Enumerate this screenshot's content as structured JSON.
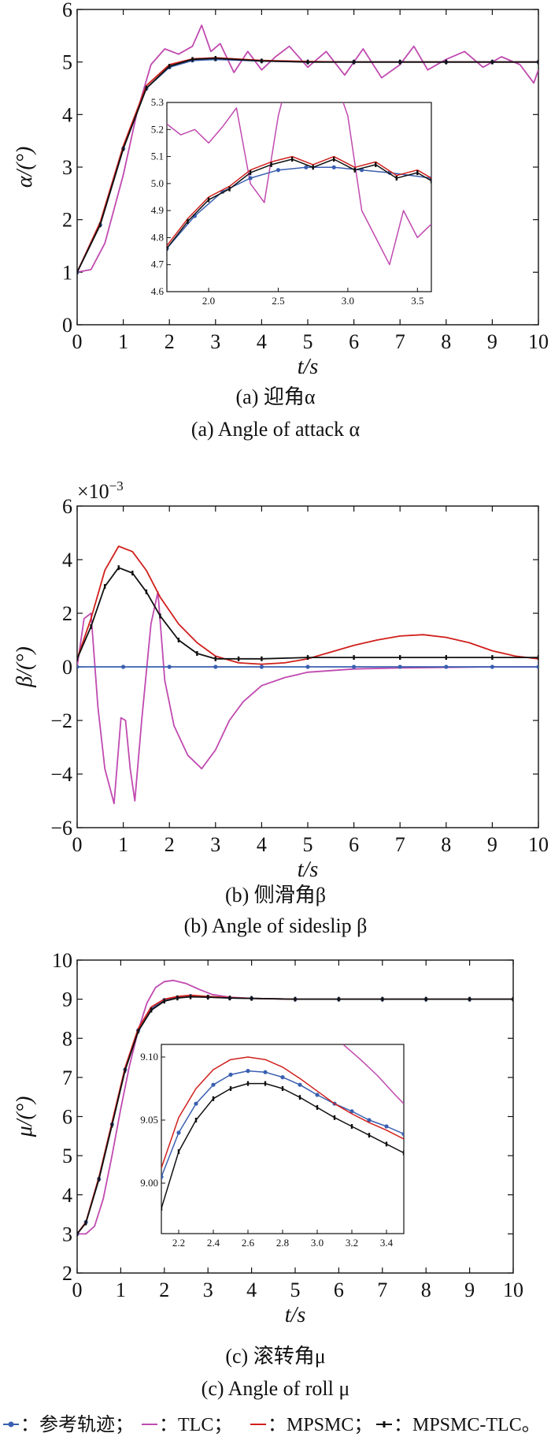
{
  "colors": {
    "reference": "#3a5fb0",
    "tlc": "#c04ab0",
    "mpsmc": "#d0201c",
    "mpsmc_tlc": "#111111"
  },
  "chart_data": [
    {
      "type": "line",
      "id": "alpha",
      "xlabel": "t/s",
      "ylabel": "α/(°)",
      "xlim": [
        0,
        10
      ],
      "ylim": [
        0,
        6
      ],
      "xticks": [
        "0",
        "1",
        "2",
        "3",
        "4",
        "5",
        "6",
        "7",
        "8",
        "9",
        "10"
      ],
      "yticks": [
        "0",
        "1",
        "2",
        "3",
        "4",
        "5",
        "6"
      ],
      "caption_cn": "(a) 迎角α",
      "caption_en": "(a) Angle of attack α",
      "series": [
        {
          "key": "reference",
          "x": [
            0,
            0.5,
            1,
            1.5,
            2,
            2.5,
            3,
            4,
            5,
            6,
            7,
            8,
            9,
            10
          ],
          "y": [
            1.0,
            1.9,
            3.35,
            4.5,
            4.9,
            5.03,
            5.05,
            5.02,
            5.0,
            5.0,
            5.0,
            5.0,
            5.0,
            5.0
          ]
        },
        {
          "key": "mpsmc",
          "x": [
            0,
            0.5,
            1,
            1.5,
            2,
            2.5,
            3,
            4,
            5,
            6,
            7,
            8,
            9,
            10
          ],
          "y": [
            1.0,
            1.95,
            3.4,
            4.55,
            4.95,
            5.06,
            5.08,
            5.03,
            5.01,
            5.0,
            5.0,
            5.0,
            5.0,
            5.0
          ]
        },
        {
          "key": "mpsmc_tlc",
          "x": [
            0,
            0.5,
            1,
            1.5,
            2,
            2.5,
            3,
            4,
            5,
            6,
            7,
            8,
            9,
            10
          ],
          "y": [
            1.0,
            1.9,
            3.35,
            4.5,
            4.92,
            5.05,
            5.07,
            5.02,
            5.0,
            5.0,
            5.0,
            5.0,
            5.0,
            5.0
          ]
        },
        {
          "key": "tlc",
          "x": [
            0,
            0.3,
            0.6,
            1.0,
            1.3,
            1.6,
            1.9,
            2.2,
            2.5,
            2.7,
            2.9,
            3.1,
            3.4,
            3.7,
            4.0,
            4.3,
            4.6,
            5.0,
            5.4,
            5.8,
            6.2,
            6.6,
            7.0,
            7.3,
            7.6,
            8.0,
            8.4,
            8.8,
            9.2,
            9.6,
            9.9,
            10.0
          ],
          "y": [
            1.0,
            1.05,
            1.55,
            2.85,
            4.05,
            4.95,
            5.25,
            5.15,
            5.3,
            5.7,
            5.2,
            5.35,
            4.8,
            5.2,
            4.85,
            5.1,
            5.3,
            4.9,
            5.2,
            4.75,
            5.25,
            4.7,
            4.95,
            5.3,
            4.85,
            5.05,
            5.2,
            4.9,
            5.1,
            4.95,
            4.6,
            4.85
          ]
        }
      ],
      "inset": {
        "xlim": [
          1.7,
          3.6
        ],
        "ylim": [
          4.6,
          5.3
        ],
        "xticks": [
          "2.0",
          "2.5",
          "3.0",
          "3.5"
        ],
        "yticks": [
          "4.6",
          "4.7",
          "4.8",
          "4.9",
          "5.0",
          "5.1",
          "5.2",
          "5.3"
        ],
        "series": [
          {
            "key": "reference",
            "x": [
              1.7,
              1.9,
              2.1,
              2.3,
              2.5,
              2.7,
              2.9,
              3.1,
              3.3,
              3.6
            ],
            "y": [
              4.76,
              4.88,
              4.97,
              5.02,
              5.05,
              5.06,
              5.06,
              5.05,
              5.04,
              5.02
            ]
          },
          {
            "key": "mpsmc",
            "x": [
              1.7,
              1.85,
              2.0,
              2.15,
              2.3,
              2.45,
              2.6,
              2.75,
              2.9,
              3.05,
              3.2,
              3.35,
              3.5,
              3.6
            ],
            "y": [
              4.77,
              4.87,
              4.95,
              4.99,
              5.05,
              5.08,
              5.1,
              5.07,
              5.1,
              5.06,
              5.08,
              5.03,
              5.05,
              5.02
            ]
          },
          {
            "key": "mpsmc_tlc",
            "x": [
              1.7,
              1.85,
              2.0,
              2.15,
              2.3,
              2.45,
              2.6,
              2.75,
              2.9,
              3.05,
              3.2,
              3.35,
              3.5,
              3.6
            ],
            "y": [
              4.76,
              4.86,
              4.94,
              4.98,
              5.04,
              5.07,
              5.09,
              5.06,
              5.09,
              5.05,
              5.07,
              5.02,
              5.04,
              5.01
            ]
          },
          {
            "key": "tlc",
            "x": [
              1.7,
              1.8,
              1.9,
              2.0,
              2.1,
              2.2,
              2.3,
              2.4,
              2.5,
              2.6,
              2.7,
              2.8,
              2.9,
              3.0,
              3.1,
              3.2,
              3.3,
              3.4,
              3.5,
              3.6
            ],
            "y": [
              5.22,
              5.18,
              5.2,
              5.15,
              5.21,
              5.28,
              5.0,
              4.93,
              5.25,
              5.45,
              5.45,
              5.35,
              5.4,
              5.25,
              4.9,
              4.8,
              4.7,
              4.9,
              4.8,
              4.85
            ]
          }
        ]
      }
    },
    {
      "type": "line",
      "id": "beta",
      "xlabel": "t/s",
      "ylabel": "β/(°)",
      "scale_label": "×10",
      "scale_exp": "−3",
      "xlim": [
        0,
        10
      ],
      "ylim": [
        -6,
        6
      ],
      "xticks": [
        "0",
        "1",
        "2",
        "3",
        "4",
        "5",
        "6",
        "7",
        "8",
        "9",
        "10"
      ],
      "yticks": [
        "−6",
        "−4",
        "−2",
        "0",
        "2",
        "4",
        "6"
      ],
      "caption_cn": "(b) 侧滑角β",
      "caption_en": "(b) Angle of sideslip β",
      "series": [
        {
          "key": "reference",
          "x": [
            0,
            1,
            2,
            3,
            4,
            5,
            6,
            7,
            8,
            9,
            10
          ],
          "y": [
            0,
            0,
            0,
            0,
            0,
            0,
            0,
            0,
            0,
            0,
            0
          ]
        },
        {
          "key": "mpsmc",
          "x": [
            0,
            0.3,
            0.6,
            0.9,
            1.2,
            1.5,
            1.8,
            2.2,
            2.6,
            3.0,
            3.5,
            4.0,
            4.5,
            5.0,
            5.5,
            6.0,
            6.5,
            7.0,
            7.5,
            8.0,
            8.5,
            9.0,
            9.5,
            10.0
          ],
          "y": [
            0.3,
            1.8,
            3.6,
            4.5,
            4.3,
            3.6,
            2.6,
            1.6,
            0.9,
            0.4,
            0.15,
            0.1,
            0.15,
            0.3,
            0.55,
            0.8,
            1.0,
            1.15,
            1.2,
            1.1,
            0.9,
            0.6,
            0.4,
            0.3
          ]
        },
        {
          "key": "mpsmc_tlc",
          "x": [
            0,
            0.3,
            0.6,
            0.9,
            1.2,
            1.5,
            1.8,
            2.2,
            2.6,
            3.0,
            3.5,
            4.0,
            5.0,
            6.0,
            7.0,
            8.0,
            9.0,
            10.0
          ],
          "y": [
            0.3,
            1.5,
            3.0,
            3.7,
            3.5,
            2.8,
            1.9,
            1.0,
            0.5,
            0.3,
            0.3,
            0.3,
            0.35,
            0.35,
            0.35,
            0.35,
            0.35,
            0.35
          ]
        },
        {
          "key": "tlc",
          "x": [
            0,
            0.15,
            0.3,
            0.45,
            0.6,
            0.8,
            0.95,
            1.05,
            1.15,
            1.25,
            1.4,
            1.6,
            1.75,
            1.9,
            2.1,
            2.4,
            2.7,
            3.0,
            3.3,
            3.6,
            4.0,
            4.5,
            5.0,
            6.0,
            7.0,
            8.0,
            9.0,
            10.0
          ],
          "y": [
            0,
            1.8,
            2.0,
            -1.5,
            -3.8,
            -5.1,
            -1.9,
            -2.0,
            -3.8,
            -5.0,
            -2.0,
            1.6,
            2.8,
            -0.5,
            -2.2,
            -3.3,
            -3.8,
            -3.1,
            -2.0,
            -1.3,
            -0.7,
            -0.4,
            -0.2,
            -0.08,
            -0.04,
            -0.02,
            0,
            0
          ]
        }
      ]
    },
    {
      "type": "line",
      "id": "mu",
      "xlabel": "t/s",
      "ylabel": "μ/(°)",
      "xlim": [
        0,
        10
      ],
      "ylim": [
        2,
        10
      ],
      "xticks": [
        "0",
        "1",
        "2",
        "3",
        "4",
        "5",
        "6",
        "7",
        "8",
        "9",
        "10"
      ],
      "yticks": [
        "2",
        "3",
        "4",
        "5",
        "6",
        "7",
        "8",
        "9",
        "10"
      ],
      "caption_cn": "(c) 滚转角μ",
      "caption_en": "(c) Angle of roll μ",
      "series": [
        {
          "key": "reference",
          "x": [
            0,
            0.2,
            0.5,
            0.8,
            1.1,
            1.4,
            1.7,
            2.0,
            2.3,
            2.6,
            3.0,
            3.5,
            4,
            5,
            6,
            7,
            8,
            9,
            10
          ],
          "y": [
            3.0,
            3.3,
            4.4,
            5.8,
            7.2,
            8.2,
            8.75,
            8.98,
            9.05,
            9.08,
            9.06,
            9.03,
            9.02,
            9.0,
            9.0,
            9.0,
            9.0,
            9.0,
            9.0
          ]
        },
        {
          "key": "mpsmc",
          "x": [
            0,
            0.2,
            0.5,
            0.8,
            1.1,
            1.4,
            1.7,
            2.0,
            2.3,
            2.6,
            3.0,
            3.5,
            4,
            5,
            6,
            7,
            8,
            9,
            10
          ],
          "y": [
            3.0,
            3.3,
            4.45,
            5.85,
            7.25,
            8.25,
            8.8,
            9.0,
            9.07,
            9.1,
            9.07,
            9.04,
            9.02,
            9.0,
            9.0,
            9.0,
            9.0,
            9.0,
            9.0
          ]
        },
        {
          "key": "mpsmc_tlc",
          "x": [
            0,
            0.2,
            0.5,
            0.8,
            1.1,
            1.4,
            1.7,
            2.0,
            2.3,
            2.6,
            3.0,
            3.5,
            4,
            5,
            6,
            7,
            8,
            9,
            10
          ],
          "y": [
            3.0,
            3.28,
            4.4,
            5.78,
            7.18,
            8.18,
            8.72,
            8.95,
            9.03,
            9.06,
            9.05,
            9.03,
            9.02,
            9.0,
            9.0,
            9.0,
            9.0,
            9.0,
            9.0
          ]
        },
        {
          "key": "tlc",
          "x": [
            0,
            0.2,
            0.4,
            0.6,
            0.8,
            1.0,
            1.2,
            1.4,
            1.6,
            1.8,
            2.0,
            2.2,
            2.5,
            2.8,
            3.1,
            3.5,
            4.0,
            5,
            6,
            7,
            8,
            9,
            10
          ],
          "y": [
            3.0,
            3.0,
            3.2,
            3.9,
            5.0,
            6.2,
            7.3,
            8.2,
            8.9,
            9.3,
            9.45,
            9.48,
            9.4,
            9.25,
            9.12,
            9.05,
            9.02,
            9.0,
            9.0,
            9.0,
            9.0,
            9.0,
            9.0
          ]
        }
      ],
      "inset": {
        "xlim": [
          2.1,
          3.5
        ],
        "ylim": [
          8.96,
          9.11
        ],
        "xticks": [
          "2.2",
          "2.4",
          "2.6",
          "2.8",
          "3.0",
          "3.2",
          "3.4"
        ],
        "yticks": [
          "9.00",
          "9.05",
          "9.10"
        ],
        "series": [
          {
            "key": "reference",
            "x": [
              2.1,
              2.2,
              2.3,
              2.4,
              2.5,
              2.6,
              2.7,
              2.8,
              2.9,
              3.0,
              3.1,
              3.2,
              3.3,
              3.4,
              3.5
            ],
            "y": [
              9.005,
              9.04,
              9.063,
              9.078,
              9.086,
              9.089,
              9.088,
              9.084,
              9.078,
              9.07,
              9.063,
              9.057,
              9.05,
              9.045,
              9.039
            ]
          },
          {
            "key": "mpsmc",
            "x": [
              2.1,
              2.2,
              2.3,
              2.4,
              2.5,
              2.6,
              2.7,
              2.8,
              2.9,
              3.0,
              3.1,
              3.2,
              3.3,
              3.4,
              3.5
            ],
            "y": [
              9.012,
              9.052,
              9.075,
              9.09,
              9.098,
              9.1,
              9.098,
              9.092,
              9.083,
              9.073,
              9.063,
              9.055,
              9.048,
              9.042,
              9.035
            ]
          },
          {
            "key": "mpsmc_tlc",
            "x": [
              2.1,
              2.2,
              2.3,
              2.4,
              2.5,
              2.6,
              2.7,
              2.8,
              2.9,
              3.0,
              3.1,
              3.2,
              3.3,
              3.4,
              3.5
            ],
            "y": [
              8.98,
              9.025,
              9.05,
              9.067,
              9.075,
              9.079,
              9.079,
              9.075,
              9.068,
              9.06,
              9.052,
              9.045,
              9.038,
              9.031,
              9.024
            ]
          },
          {
            "key": "tlc",
            "x": [
              3.15,
              3.25,
              3.35,
              3.45,
              3.5
            ],
            "y": [
              9.11,
              9.098,
              9.085,
              9.07,
              9.063
            ]
          }
        ]
      }
    }
  ],
  "legend": [
    {
      "key": "reference",
      "label": "：参考轨迹；"
    },
    {
      "key": "tlc",
      "label": "：TLC；"
    },
    {
      "key": "mpsmc",
      "label": "：MPSMC；"
    },
    {
      "key": "mpsmc_tlc",
      "label": "：MPSMC-TLC。"
    }
  ]
}
